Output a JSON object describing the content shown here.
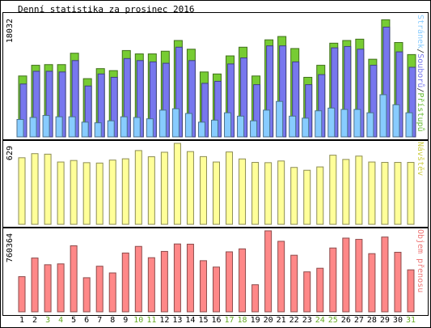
{
  "chart_data": {
    "type": "bar",
    "title": "Denní statistika za prosinec 2016",
    "categories": [
      "1",
      "2",
      "3",
      "4",
      "5",
      "6",
      "7",
      "8",
      "9",
      "10",
      "11",
      "12",
      "13",
      "14",
      "15",
      "16",
      "17",
      "18",
      "19",
      "20",
      "21",
      "22",
      "23",
      "24",
      "25",
      "26",
      "27",
      "28",
      "29",
      "30",
      "31"
    ],
    "weekend_days": [
      "3",
      "4",
      "10",
      "11",
      "17",
      "18",
      "24",
      "25",
      "31"
    ],
    "panels": [
      {
        "id": "top",
        "max_label": "18032",
        "ylim": [
          0,
          18032
        ],
        "legend": [
          "Stránek",
          "/",
          "Souborů",
          "/",
          "Přístupů"
        ],
        "legend_colors": [
          "#88ccff",
          "#333333",
          "#7777ee",
          "#333333",
          "#66bb33"
        ],
        "series": [
          {
            "name": "Přístupů",
            "color": "#77cc33",
            "values": [
              9100,
              10700,
              10800,
              10800,
              12500,
              8700,
              10200,
              9900,
              12900,
              12400,
              12400,
              12800,
              14400,
              13100,
              9700,
              9400,
              12100,
              13400,
              9100,
              14500,
              15000,
              13200,
              8900,
              10700,
              14000,
              14400,
              14600,
              11600,
              17500,
              14100,
              12300
            ]
          },
          {
            "name": "Souborů",
            "color": "#7777ee",
            "values": [
              7900,
              9800,
              9800,
              9700,
              11400,
              7600,
              9400,
              8900,
              11700,
              11400,
              11200,
              11000,
              13400,
              11400,
              8000,
              8300,
              10900,
              11800,
              7800,
              13600,
              13600,
              11200,
              7800,
              9300,
              13300,
              13500,
              13100,
              10700,
              16400,
              12700,
              10400
            ]
          },
          {
            "name": "Stránek",
            "color": "#88ccff",
            "values": [
              2600,
              2900,
              3200,
              3000,
              3000,
              2200,
              2100,
              2400,
              3000,
              2900,
              2700,
              4000,
              4200,
              3500,
              2200,
              2500,
              3600,
              3100,
              2400,
              4000,
              5300,
              3100,
              2800,
              3900,
              4300,
              4100,
              4100,
              3600,
              6300,
              4800,
              3600
            ]
          }
        ]
      },
      {
        "id": "middle",
        "max_label": "629",
        "ylim": [
          0,
          629
        ],
        "legend": [
          "Návštěv"
        ],
        "legend_colors": [
          "#cccc44"
        ],
        "series": [
          {
            "name": "Návštěv",
            "color": "#ffff99",
            "values": [
              517,
              549,
              545,
              484,
              496,
              479,
              476,
              499,
              509,
              573,
              525,
              560,
              629,
              565,
              526,
              484,
              562,
              508,
              481,
              479,
              492,
              442,
              420,
              446,
              537,
              504,
              530,
              484,
              481,
              481,
              481
            ]
          }
        ]
      },
      {
        "id": "bottom",
        "max_label": "760364",
        "ylim": [
          0,
          760364
        ],
        "legend": [
          "Objem přenosu"
        ],
        "legend_colors": [
          "#ee7777"
        ],
        "series": [
          {
            "name": "Objem přenosu",
            "color": "#ff8888",
            "values": [
              330000,
              505000,
              442000,
              450000,
              620000,
              320000,
              428000,
              365000,
              552000,
              614000,
              508000,
              567000,
              637000,
              635000,
              480000,
              420000,
              563000,
              591000,
              254000,
              760364,
              662000,
              531000,
              375000,
              409000,
              599000,
              692000,
              680000,
              546000,
              702000,
              559000,
              394000
            ]
          }
        ]
      }
    ]
  }
}
